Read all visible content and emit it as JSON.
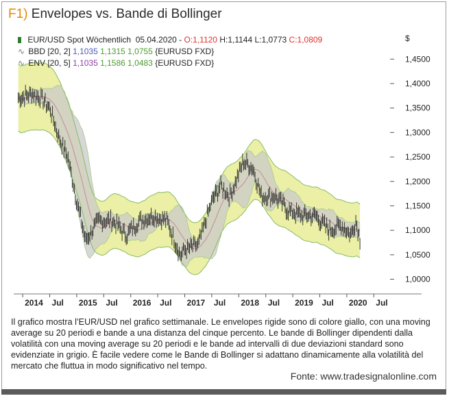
{
  "title": {
    "prefix": "F1)",
    "text": "Envelopes vs. Bande di Bollinger"
  },
  "legend": {
    "row1": {
      "icon": "candle-icon",
      "name": "EUR/USD Spot Wöchentlich",
      "date": "05.04.2020",
      "o": "O:1,1120",
      "h": "H:1,1144",
      "l": "L:1,0773",
      "c": "C:1,0809"
    },
    "row2": {
      "icon": "line-icon",
      "name": "BBD [20, 2]",
      "v1": "1,1035",
      "v2": "1,1315",
      "v3": "1,0755",
      "sym": "{EURUSD FXD}"
    },
    "row3": {
      "icon": "line-icon",
      "name": "ENV [20, 5]",
      "v1": "1,1035",
      "v2": "1,1586",
      "v3": "1,0483",
      "sym": "{EURUSD FXD}"
    }
  },
  "chart_data": {
    "type": "line",
    "currency_label": "$",
    "y_ticks": [
      "1,4500",
      "1,4000",
      "1,3500",
      "1,3000",
      "1,2500",
      "1,2000",
      "1,1500",
      "1,1000",
      "1,0500",
      "1,0000"
    ],
    "ylim": [
      0.97,
      1.47
    ],
    "x_ticks": [
      "2014",
      "Jul",
      "2015",
      "Jul",
      "2016",
      "Jul",
      "2017",
      "Jul",
      "2018",
      "Jul",
      "2019",
      "Jul",
      "2020",
      "Jul"
    ],
    "x_tick_dates": [
      "2014-01",
      "2014-07",
      "2015-01",
      "2015-07",
      "2016-01",
      "2016-07",
      "2017-01",
      "2017-07",
      "2018-01",
      "2018-07",
      "2019-01",
      "2019-07",
      "2020-01",
      "2020-07"
    ],
    "series": [
      {
        "x": [
          "2013-12",
          "2014-03",
          "2014-05",
          "2014-07",
          "2014-09",
          "2014-11",
          "2015-01",
          "2015-03",
          "2015-06",
          "2015-09",
          "2015-12",
          "2016-03",
          "2016-06",
          "2016-09",
          "2016-12",
          "2017-01",
          "2017-04",
          "2017-07",
          "2017-09",
          "2017-11",
          "2018-02",
          "2018-04",
          "2018-06",
          "2018-09",
          "2018-12",
          "2019-03",
          "2019-06",
          "2019-09",
          "2019-12",
          "2020-02",
          "2020-03",
          "2020-04"
        ],
        "values": [
          1.37,
          1.38,
          1.37,
          1.35,
          1.29,
          1.25,
          1.16,
          1.08,
          1.12,
          1.12,
          1.09,
          1.12,
          1.13,
          1.12,
          1.05,
          1.06,
          1.07,
          1.16,
          1.19,
          1.17,
          1.24,
          1.23,
          1.17,
          1.17,
          1.14,
          1.13,
          1.13,
          1.1,
          1.11,
          1.09,
          1.12,
          1.08
        ]
      }
    ],
    "colors": {
      "envelope": "#ecefa6",
      "bollinger": "#c9c9c9",
      "bands_line": "#86bb66",
      "ma": "#c7899d",
      "price": "#1f1f1f"
    }
  },
  "caption": "Il grafico mostra l’EUR/USD nel grafico settimanale. Le envelopes rigide sono di colore giallo, con una moving average su 20 periodi e bande a una distanza del cinque percento. Le bande di Bollinger dipendenti dalla volatilità con una moving average su 20 periodi e le bande ad intervalli di due deviazioni standard sono evidenziate in grigio. È facile vedere come le Bande di Bollinger si adattano dinamicamente alla volatilità del mercato che fluttua in modo significativo nel tempo.",
  "source": "Fonte: www.tradesignalonline.com"
}
